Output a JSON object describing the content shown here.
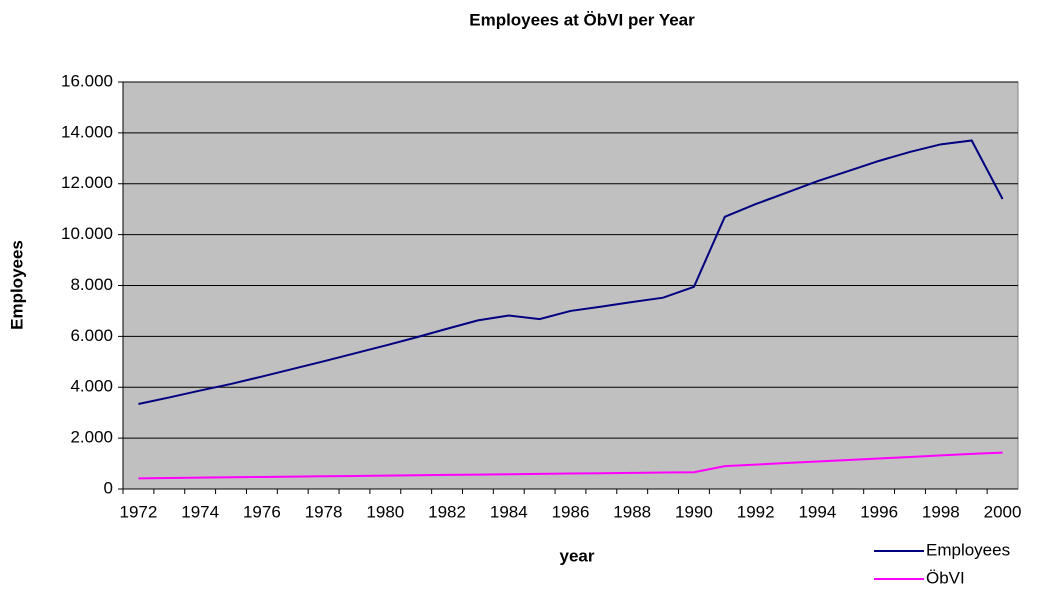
{
  "chart_data": {
    "type": "line",
    "title": "Employees at ÖbVI per Year",
    "x_label": "year",
    "y_label": "Employees",
    "categories": [
      "1972",
      null,
      "1974",
      null,
      "1976",
      null,
      "1978",
      null,
      "1980",
      null,
      "1982",
      null,
      "1984",
      null,
      "1986",
      null,
      "1988",
      null,
      "1990",
      null,
      "1992",
      null,
      "1994",
      null,
      "1996",
      null,
      "1998",
      null,
      "2000"
    ],
    "series": [
      {
        "name": "Employees",
        "color": "#000080",
        "values": [
          3340,
          3600,
          3870,
          4130,
          4420,
          4720,
          5020,
          5330,
          5640,
          5960,
          6300,
          6630,
          6820,
          6680,
          7000,
          7170,
          7350,
          7520,
          7950,
          10700,
          11200,
          11650,
          12100,
          12500,
          12900,
          13250,
          13550,
          13700,
          11400
        ]
      },
      {
        "name": "ÖbVI",
        "color": "#ff00ff",
        "values": [
          420,
          433,
          447,
          460,
          473,
          487,
          500,
          513,
          527,
          540,
          553,
          567,
          580,
          593,
          607,
          620,
          633,
          647,
          660,
          900,
          960,
          1020,
          1080,
          1140,
          1200,
          1260,
          1320,
          1380,
          1430
        ]
      }
    ],
    "ylim": [
      0,
      16000
    ],
    "yticks": [
      0,
      {
        "value": 2000,
        "label": "2.000"
      },
      {
        "value": 4000,
        "label": "4.000"
      },
      {
        "value": 6000,
        "label": "6.000"
      },
      {
        "value": 8000,
        "label": "8.000"
      },
      {
        "value": 10000,
        "label": "10.000"
      },
      {
        "value": 12000,
        "label": "12.000"
      },
      {
        "value": 14000,
        "label": "14.000"
      },
      {
        "value": 16000,
        "label": "16.000"
      }
    ],
    "grid": true,
    "legend": "bottom-right",
    "plot_background": "#c0c0c0"
  }
}
